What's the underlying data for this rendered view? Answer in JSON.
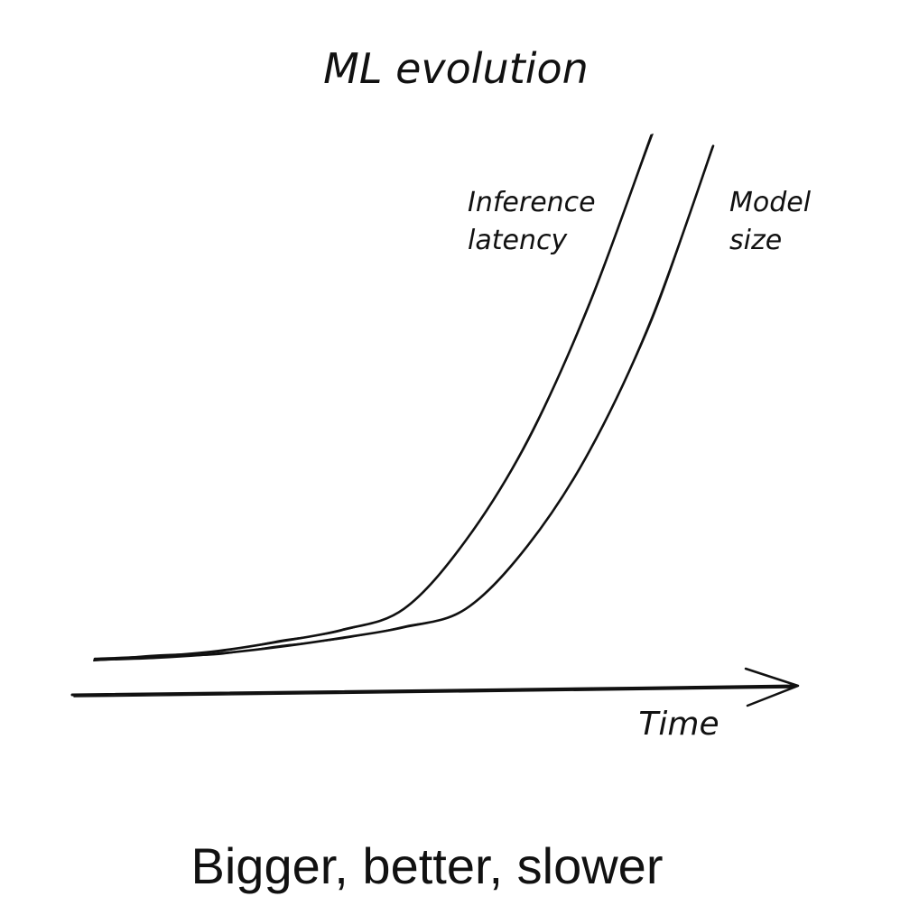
{
  "chart_data": {
    "type": "line",
    "title": "ML evolution",
    "xlabel": "Time",
    "ylabel": "",
    "x": [
      0,
      1,
      2,
      3,
      4,
      5,
      6,
      7,
      8,
      9,
      10
    ],
    "xlim": [
      0,
      10
    ],
    "ylim": [
      0,
      10
    ],
    "grid": false,
    "legend": "none",
    "series": [
      {
        "name": "Inference latency",
        "label_lines": [
          "Inference",
          "latency"
        ],
        "values": [
          0.05,
          0.1,
          0.2,
          0.38,
          0.6,
          1.0,
          2.3,
          4.2,
          6.8,
          10.0,
          null
        ]
      },
      {
        "name": "Model size",
        "label_lines": [
          "Model",
          "size"
        ],
        "values": [
          0.03,
          0.07,
          0.15,
          0.28,
          0.45,
          0.65,
          1.0,
          2.2,
          4.0,
          6.5,
          9.8
        ]
      }
    ]
  },
  "caption": "Bigger, better, slower",
  "colors": {
    "ink": "#111111",
    "background": "#ffffff"
  }
}
